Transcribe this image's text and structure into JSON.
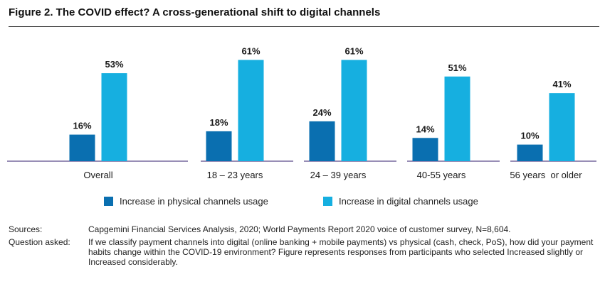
{
  "title": "Figure 2. The COVID effect? A cross-generational shift to digital channels",
  "colors": {
    "physical": "#0a6fb0",
    "digital": "#16afe0",
    "axis": "#5a4a8a"
  },
  "chart_data": {
    "type": "bar",
    "categories": [
      "Overall",
      "18 – 23 years",
      "24 – 39 years",
      "40-55 years",
      "56 years  or older"
    ],
    "series": [
      {
        "name": "Increase in physical channels usage",
        "values": [
          16,
          18,
          24,
          14,
          10
        ],
        "labels": [
          "16%",
          "18%",
          "24%",
          "14%",
          "10%"
        ]
      },
      {
        "name": "Increase in digital channels usage",
        "values": [
          53,
          61,
          61,
          51,
          41
        ],
        "labels": [
          "53%",
          "61%",
          "61%",
          "51%",
          "41%"
        ]
      }
    ],
    "ylim": [
      0,
      65
    ],
    "grid": false,
    "legend_position": "bottom"
  },
  "notes": {
    "sources_label": "Sources:",
    "sources_text": "Capgemini Financial Services Analysis, 2020; World Payments Report 2020 voice of customer survey, N=8,604.",
    "question_label": "Question asked:",
    "question_text": "If we classify payment channels into digital (online banking + mobile payments) vs physical (cash, check, PoS), how did your payment habits change within the COVID-19 environment? Figure represents responses from participants who selected Increased slightly or Increased considerably."
  }
}
